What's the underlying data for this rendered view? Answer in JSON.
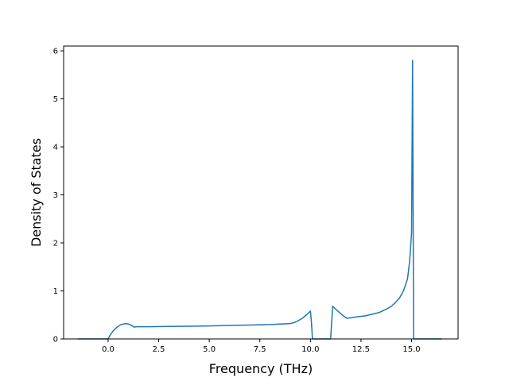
{
  "chart_data": {
    "type": "line",
    "title": "",
    "xlabel": "Frequency (THz)",
    "ylabel": "Density of States",
    "xlim": [
      -2.2,
      17.3
    ],
    "ylim": [
      0,
      6.1
    ],
    "xticks": [
      0.0,
      2.5,
      5.0,
      7.5,
      10.0,
      12.5,
      15.0
    ],
    "xtick_labels": [
      "0.0",
      "2.5",
      "5.0",
      "7.5",
      "10.0",
      "12.5",
      "15.0"
    ],
    "yticks": [
      0,
      1,
      2,
      3,
      4,
      5,
      6
    ],
    "ytick_labels": [
      "0",
      "1",
      "2",
      "3",
      "4",
      "5",
      "6"
    ],
    "grid": false,
    "legend": "none",
    "series": [
      {
        "color": "#1f77b4",
        "x": [
          -1.5,
          -0.5,
          0.0,
          0.1,
          0.2,
          0.3,
          0.4,
          0.5,
          0.6,
          0.7,
          0.8,
          0.9,
          1.0,
          1.1,
          1.2,
          1.3,
          1.4,
          1.6,
          2.0,
          3.0,
          4.0,
          5.0,
          6.0,
          7.0,
          8.0,
          9.0,
          9.2,
          9.4,
          9.6,
          9.8,
          10.0,
          10.05,
          10.1,
          11.0,
          11.05,
          11.1,
          11.3,
          11.6,
          11.8,
          12.0,
          12.3,
          12.7,
          13.0,
          13.4,
          13.8,
          14.0,
          14.2,
          14.4,
          14.6,
          14.8,
          14.9,
          15.0,
          15.05,
          15.1,
          16.5
        ],
        "y": [
          0,
          0,
          0,
          0.08,
          0.14,
          0.19,
          0.23,
          0.265,
          0.29,
          0.305,
          0.315,
          0.318,
          0.31,
          0.295,
          0.27,
          0.245,
          0.255,
          0.255,
          0.255,
          0.26,
          0.265,
          0.27,
          0.28,
          0.29,
          0.3,
          0.32,
          0.34,
          0.38,
          0.43,
          0.5,
          0.58,
          0.35,
          0.0,
          0.0,
          0.35,
          0.68,
          0.6,
          0.49,
          0.43,
          0.44,
          0.46,
          0.48,
          0.51,
          0.55,
          0.63,
          0.68,
          0.76,
          0.85,
          1.0,
          1.25,
          1.6,
          2.2,
          5.8,
          0.0,
          0.0
        ]
      }
    ]
  }
}
